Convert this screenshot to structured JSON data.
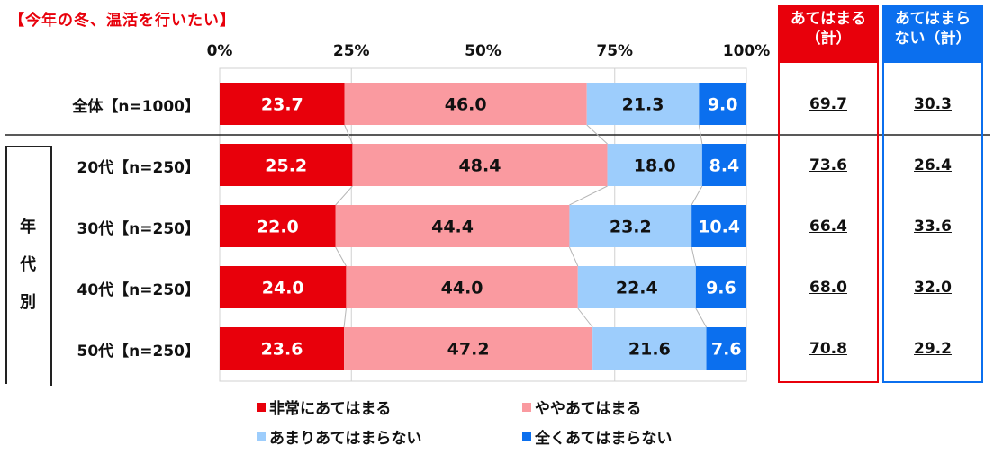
{
  "title": "【今年の冬、温活を行いたい】",
  "colors": {
    "very": "#e8000b",
    "somewhat": "#fa9aa0",
    "not_much": "#9dcdfc",
    "not_at_all": "#0b6fee",
    "sum_agree": "#e8000b",
    "sum_disagree": "#0b6fee"
  },
  "summary": {
    "agree_header": [
      "あてはまる",
      "（計）"
    ],
    "disagree_header": [
      "あてはまら",
      "ない（計）"
    ]
  },
  "group_label": [
    "年",
    "代",
    "別"
  ],
  "legend": [
    {
      "label": "非常にあてはまる",
      "color": "#e8000b"
    },
    {
      "label": "ややあてはまる",
      "color": "#fa9aa0"
    },
    {
      "label": "あまりあてはまらない",
      "color": "#9dcdfc"
    },
    {
      "label": "全くあてはまらない",
      "color": "#0b6fee"
    }
  ],
  "chart_data": {
    "type": "bar",
    "orientation": "horizontal-stacked-100",
    "title": "【今年の冬、温活を行いたい】",
    "xlim": [
      0,
      100
    ],
    "x_ticks": [
      "0%",
      "25%",
      "50%",
      "75%",
      "100%"
    ],
    "categories": [
      "全体【n=1000】",
      "20代【n=250】",
      "30代【n=250】",
      "40代【n=250】",
      "50代【n=250】"
    ],
    "series": [
      {
        "name": "非常にあてはまる",
        "values": [
          23.7,
          25.2,
          22.0,
          24.0,
          23.6
        ]
      },
      {
        "name": "ややあてはまる",
        "values": [
          46.0,
          48.4,
          44.4,
          44.0,
          47.2
        ]
      },
      {
        "name": "あまりあてはまらない",
        "values": [
          21.3,
          18.0,
          23.2,
          22.4,
          21.6
        ]
      },
      {
        "name": "全くあてはまらない",
        "values": [
          9.0,
          8.4,
          10.4,
          9.6,
          7.6
        ]
      }
    ],
    "totals_agree": [
      "69.7",
      "73.6",
      "66.4",
      "68.0",
      "70.8"
    ],
    "totals_disagree": [
      "30.3",
      "26.4",
      "33.6",
      "32.0",
      "29.2"
    ],
    "grid": true,
    "legend_position": "bottom"
  }
}
